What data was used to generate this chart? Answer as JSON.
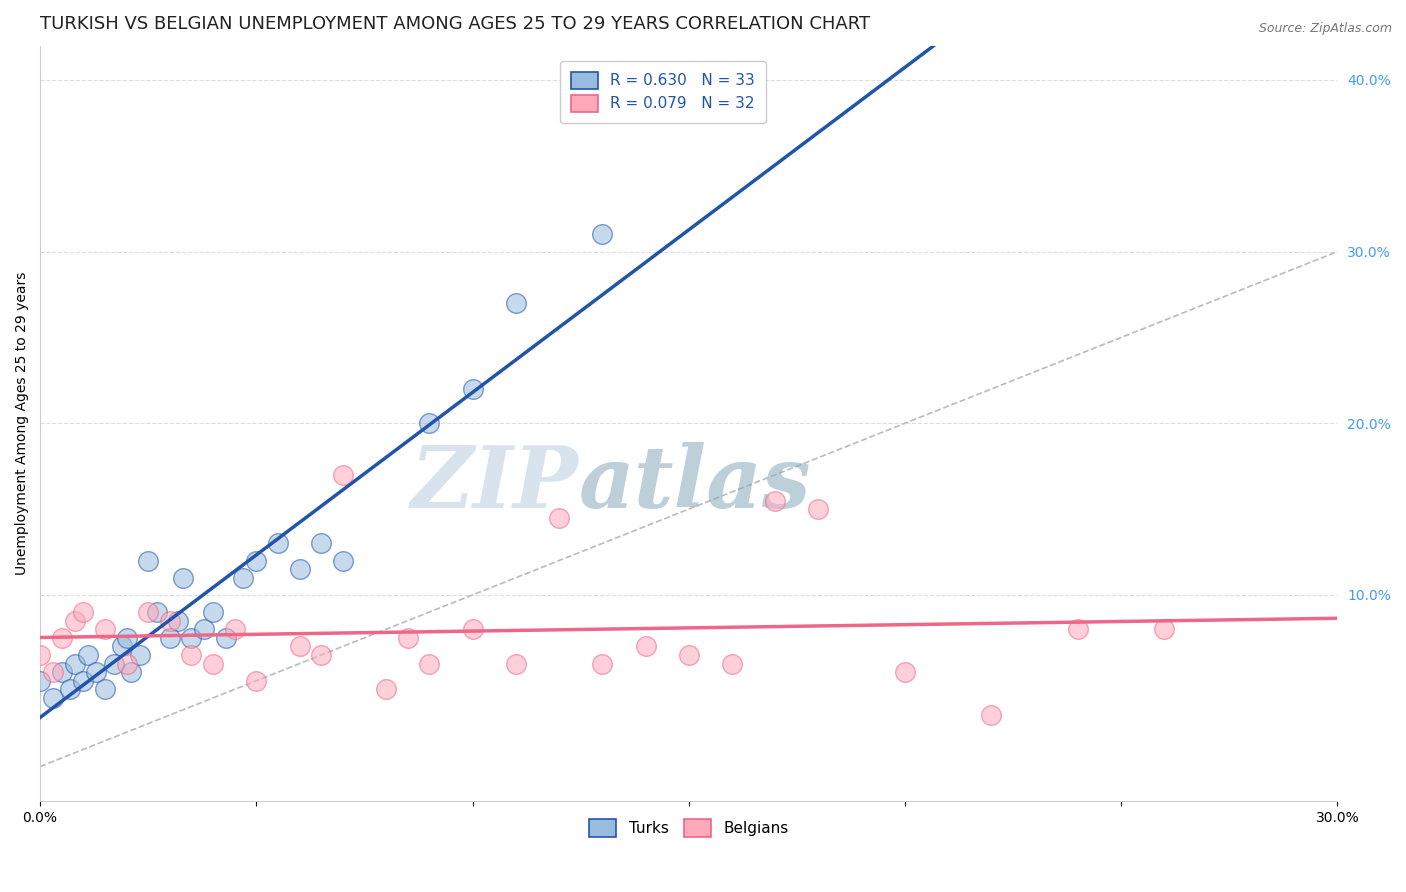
{
  "title": "TURKISH VS BELGIAN UNEMPLOYMENT AMONG AGES 25 TO 29 YEARS CORRELATION CHART",
  "source": "Source: ZipAtlas.com",
  "ylabel": "Unemployment Among Ages 25 to 29 years",
  "xlim": [
    0.0,
    0.3
  ],
  "ylim": [
    -0.02,
    0.42
  ],
  "xticks": [
    0.0,
    0.05,
    0.1,
    0.15,
    0.2,
    0.25,
    0.3
  ],
  "xticklabels": [
    "0.0%",
    "",
    "",
    "",
    "",
    "",
    "30.0%"
  ],
  "yticks_right": [
    0.1,
    0.2,
    0.3,
    0.4
  ],
  "yticklabels_right": [
    "10.0%",
    "20.0%",
    "30.0%",
    "40.0%"
  ],
  "turks_R": 0.63,
  "turks_N": 33,
  "belgians_R": 0.079,
  "belgians_N": 32,
  "turks_color": "#99BBDD",
  "belgians_color": "#FFAABB",
  "turks_line_color": "#2255AA",
  "belgians_line_color": "#EE6688",
  "ref_line_color": "#BBBBBB",
  "watermark_zip": "ZIP",
  "watermark_atlas": "atlas",
  "background_color": "#FFFFFF",
  "grid_color": "#DDDDDD",
  "turks_x": [
    0.0,
    0.003,
    0.005,
    0.007,
    0.008,
    0.01,
    0.011,
    0.013,
    0.015,
    0.017,
    0.019,
    0.02,
    0.021,
    0.023,
    0.025,
    0.027,
    0.03,
    0.032,
    0.033,
    0.035,
    0.038,
    0.04,
    0.043,
    0.047,
    0.05,
    0.055,
    0.06,
    0.065,
    0.07,
    0.09,
    0.1,
    0.11,
    0.13
  ],
  "turks_y": [
    0.05,
    0.04,
    0.055,
    0.045,
    0.06,
    0.05,
    0.065,
    0.055,
    0.045,
    0.06,
    0.07,
    0.075,
    0.055,
    0.065,
    0.12,
    0.09,
    0.075,
    0.085,
    0.11,
    0.075,
    0.08,
    0.09,
    0.075,
    0.11,
    0.12,
    0.13,
    0.115,
    0.13,
    0.12,
    0.2,
    0.22,
    0.27,
    0.31
  ],
  "belgians_x": [
    0.0,
    0.003,
    0.005,
    0.008,
    0.01,
    0.015,
    0.02,
    0.025,
    0.03,
    0.035,
    0.04,
    0.045,
    0.05,
    0.06,
    0.065,
    0.07,
    0.08,
    0.085,
    0.09,
    0.1,
    0.11,
    0.12,
    0.13,
    0.14,
    0.15,
    0.16,
    0.17,
    0.18,
    0.2,
    0.22,
    0.24,
    0.26
  ],
  "belgians_y": [
    0.065,
    0.055,
    0.075,
    0.085,
    0.09,
    0.08,
    0.06,
    0.09,
    0.085,
    0.065,
    0.06,
    0.08,
    0.05,
    0.07,
    0.065,
    0.17,
    0.045,
    0.075,
    0.06,
    0.08,
    0.06,
    0.145,
    0.06,
    0.07,
    0.065,
    0.06,
    0.155,
    0.15,
    0.055,
    0.03,
    0.08,
    0.08
  ],
  "title_fontsize": 13,
  "axis_label_fontsize": 10,
  "tick_fontsize": 10,
  "legend_fontsize": 11
}
